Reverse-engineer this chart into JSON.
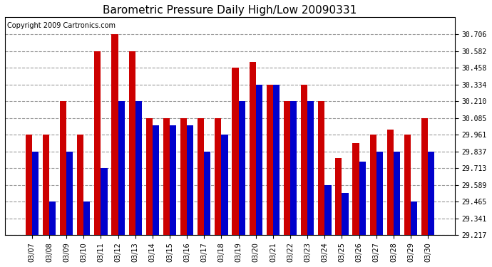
{
  "title": "Barometric Pressure Daily High/Low 20090331",
  "copyright": "Copyright 2009 Cartronics.com",
  "dates": [
    "03/07",
    "03/08",
    "03/09",
    "03/10",
    "03/11",
    "03/12",
    "03/13",
    "03/14",
    "03/15",
    "03/16",
    "03/17",
    "03/18",
    "03/19",
    "03/20",
    "03/21",
    "03/22",
    "03/23",
    "03/24",
    "03/25",
    "03/26",
    "03/27",
    "03/28",
    "03/29",
    "03/30"
  ],
  "highs": [
    29.961,
    29.961,
    30.21,
    29.961,
    30.582,
    30.706,
    30.582,
    30.085,
    30.085,
    30.085,
    30.085,
    30.085,
    30.458,
    30.5,
    30.334,
    30.21,
    30.334,
    30.21,
    29.79,
    29.9,
    29.961,
    30.0,
    29.961,
    30.085
  ],
  "lows": [
    29.837,
    29.465,
    29.837,
    29.465,
    29.713,
    30.21,
    30.21,
    30.03,
    30.03,
    30.03,
    29.837,
    29.961,
    30.21,
    30.334,
    30.334,
    30.21,
    30.21,
    29.589,
    29.53,
    29.76,
    29.837,
    29.837,
    29.465,
    29.837
  ],
  "high_color": "#cc0000",
  "low_color": "#0000cc",
  "background_color": "#ffffff",
  "plot_bg_color": "#ffffff",
  "grid_color": "#999999",
  "title_fontsize": 11,
  "copyright_fontsize": 7,
  "tick_fontsize": 7,
  "bar_bottom": 29.217,
  "ylim_min": 29.217,
  "ylim_max": 30.83,
  "yticks": [
    29.217,
    29.341,
    29.465,
    29.589,
    29.713,
    29.837,
    29.961,
    30.085,
    30.21,
    30.334,
    30.458,
    30.582,
    30.706
  ]
}
